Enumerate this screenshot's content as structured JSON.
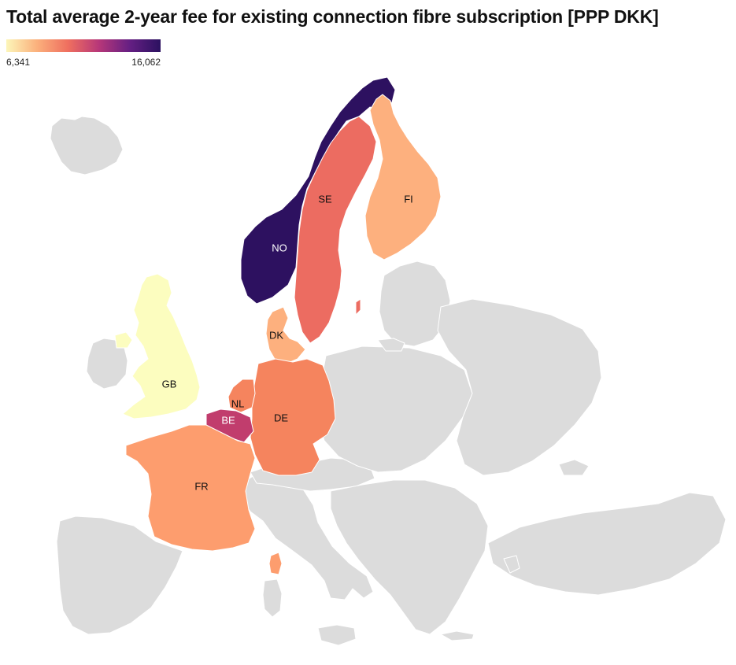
{
  "title": "Total average 2-year fee for existing connection fibre subscription [PPP DKK]",
  "legend": {
    "min_label": "6,341",
    "max_label": "16,062",
    "gradient_colors": [
      "#fcf6b9",
      "#fbb07c",
      "#ef6f5f",
      "#b73779",
      "#651f83",
      "#2b1160"
    ]
  },
  "map_style": {
    "background_country_color": "#dcdcdc",
    "border_color": "#ffffff",
    "label_dark_color": "#111111",
    "label_light_color": "#ffffff"
  },
  "countries": [
    {
      "code": "NO",
      "label": "NO",
      "color": "#2d1160"
    },
    {
      "code": "SE",
      "label": "SE",
      "color": "#ec6c61"
    },
    {
      "code": "FI",
      "label": "FI",
      "color": "#fdb07e"
    },
    {
      "code": "DK",
      "label": "DK",
      "color": "#fdb07e"
    },
    {
      "code": "GB",
      "label": "GB",
      "color": "#fcfdbf"
    },
    {
      "code": "NL",
      "label": "NL",
      "color": "#f5845e"
    },
    {
      "code": "BE",
      "label": "BE",
      "color": "#c13d6d"
    },
    {
      "code": "DE",
      "label": "DE",
      "color": "#f5845e"
    },
    {
      "code": "FR",
      "label": "FR",
      "color": "#fd9d6e"
    }
  ]
}
